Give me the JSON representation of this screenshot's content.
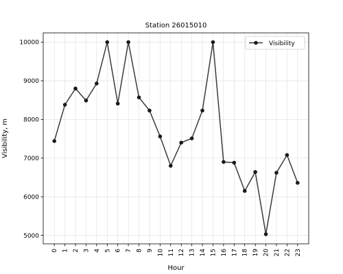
{
  "chart_data": {
    "type": "line",
    "title": "Station 26015010",
    "xlabel": "Hour",
    "ylabel": "Visibility, m",
    "x": [
      0,
      1,
      2,
      3,
      4,
      5,
      6,
      7,
      8,
      9,
      10,
      11,
      12,
      13,
      14,
      15,
      16,
      17,
      18,
      19,
      20,
      21,
      22,
      23
    ],
    "x_tick_labels": [
      "0",
      "1",
      "2",
      "3",
      "4",
      "5",
      "6",
      "7",
      "8",
      "9",
      "10",
      "11",
      "12",
      "13",
      "14",
      "15",
      "16",
      "17",
      "18",
      "19",
      "20",
      "21",
      "22",
      "23"
    ],
    "series": [
      {
        "name": "Visibility",
        "color": "#3a3a3a",
        "values": [
          7440,
          8380,
          8800,
          8490,
          8930,
          10000,
          8410,
          10000,
          8570,
          8230,
          7560,
          6800,
          7400,
          7510,
          8230,
          10000,
          6900,
          6880,
          6150,
          6640,
          5030,
          6620,
          7080,
          6360
        ]
      }
    ],
    "y_ticks": [
      5000,
      6000,
      7000,
      8000,
      9000,
      10000
    ],
    "y_tick_labels": [
      "5000",
      "6000",
      "7000",
      "8000",
      "9000",
      "10000"
    ],
    "ylim": [
      4780,
      10240
    ],
    "xlim": [
      -1.05,
      24.05
    ],
    "grid": true,
    "legend_position": "top-right"
  }
}
